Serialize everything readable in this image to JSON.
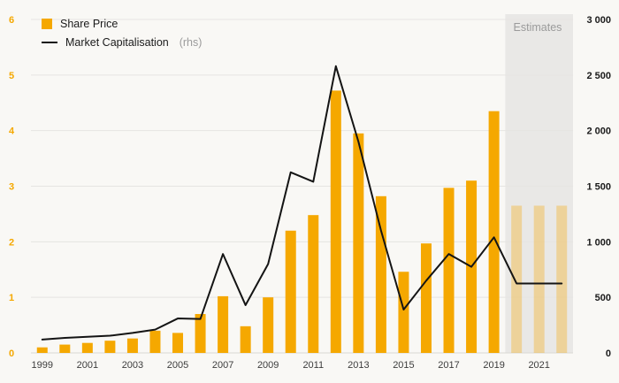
{
  "legend": {
    "share_price_label": "Share Price",
    "market_cap_label": "Market Capitalisation",
    "rhs_suffix": "(rhs)"
  },
  "estimates_label": "Estimates",
  "chart_data": {
    "type": "bar",
    "subtype": "bar+line combo, dual axis",
    "categories": [
      1999,
      2000,
      2001,
      2002,
      2003,
      2004,
      2005,
      2006,
      2007,
      2008,
      2009,
      2010,
      2011,
      2012,
      2013,
      2014,
      2015,
      2016,
      2017,
      2018,
      2019,
      2020,
      2021,
      2022
    ],
    "series": [
      {
        "name": "Share Price",
        "type": "bar",
        "axis": "left",
        "values": [
          0.1,
          0.15,
          0.18,
          0.22,
          0.26,
          0.4,
          0.36,
          0.7,
          1.02,
          0.48,
          1.0,
          2.2,
          2.48,
          4.72,
          3.95,
          2.82,
          1.46,
          1.97,
          2.97,
          3.1,
          4.35,
          2.65,
          2.65,
          2.65
        ],
        "estimate_from_index": 21
      },
      {
        "name": "Market Capitalisation",
        "type": "line",
        "axis": "right",
        "values": [
          120,
          135,
          145,
          155,
          180,
          210,
          310,
          305,
          890,
          430,
          800,
          1625,
          1540,
          2580,
          1900,
          1100,
          390,
          650,
          890,
          775,
          1040,
          625,
          625,
          625
        ]
      }
    ],
    "left_axis": {
      "min": 0,
      "max": 6,
      "tick_step": 1,
      "ticks": [
        "0",
        "1",
        "2",
        "3",
        "4",
        "5",
        "6"
      ]
    },
    "right_axis": {
      "min": 0,
      "max": 3000,
      "tick_step": 500,
      "tick_labels": [
        "0",
        "500",
        "1 000",
        "1 500",
        "2 000",
        "2 500",
        "3 000"
      ]
    },
    "x_tick_labels": [
      "1999",
      "2001",
      "2003",
      "2005",
      "2007",
      "2009",
      "2011",
      "2013",
      "2015",
      "2017",
      "2019",
      "2021"
    ],
    "estimates_region": {
      "start_category": 2020,
      "label": "Estimates"
    },
    "grid": "horizontal",
    "legend_position": "top-left",
    "colors": {
      "bar": "#F5A800",
      "bar_estimate_opacity": 0.33,
      "line": "#141414",
      "grid": "#e6e5e2",
      "baseline": "#d9d8d4",
      "estimate_band": "#e9e8e6",
      "background": "#f9f8f5",
      "left_axis_text": "#F5A800",
      "right_axis_text": "#1a1a1a",
      "x_axis_text": "#3c3c3c",
      "muted_text": "#9b9b9b"
    }
  }
}
